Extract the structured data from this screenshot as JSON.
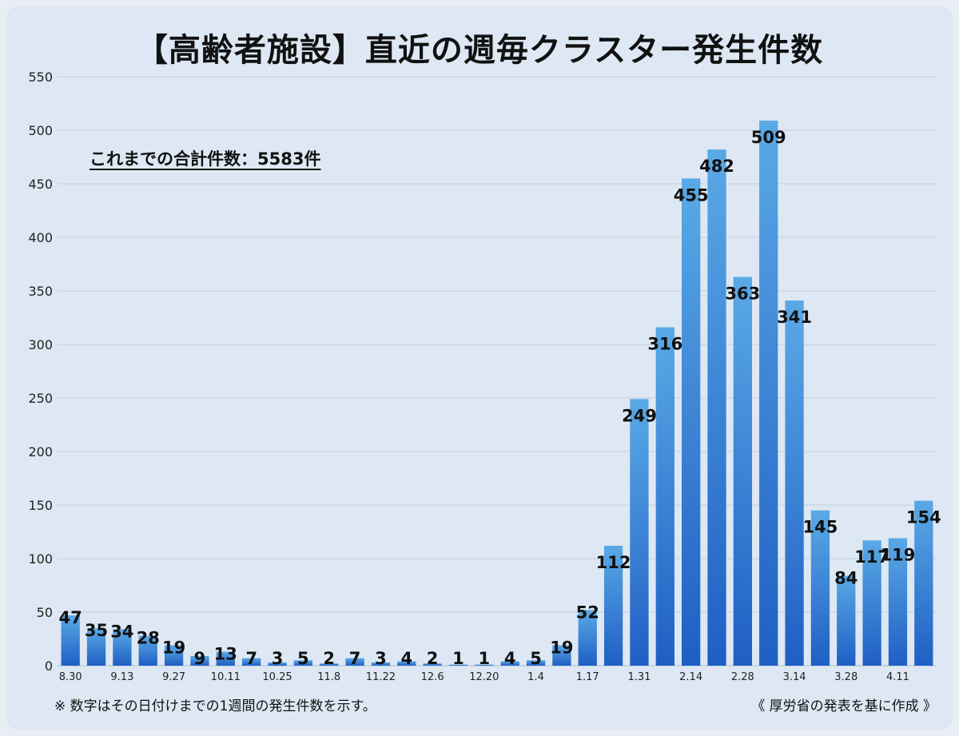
{
  "title": "【高齢者施設】直近の週毎クラスター発生件数",
  "total_note": "これまでの合計件数：5583件",
  "footnote_left": "※ 数字はその日付けまでの1週間の発生件数を示す。",
  "footnote_right": "《 厚労省の発表を基に作成 》",
  "colors": {
    "bar_top": "#5aa9e6",
    "bar_bottom": "#1f5fc4",
    "grid": "#b8c6d6",
    "panel": "#dde8f4"
  },
  "chart_data": {
    "type": "bar",
    "title": "【高齢者施設】直近の週毎クラスター発生件数",
    "xlabel": "",
    "ylabel": "",
    "ylim": [
      0,
      550
    ],
    "yticks": [
      0,
      50,
      100,
      150,
      200,
      250,
      300,
      350,
      400,
      450,
      500,
      550
    ],
    "grid": true,
    "categories": [
      "8.30",
      "",
      "9.13",
      "",
      "9.27",
      "",
      "10.11",
      "",
      "10.25",
      "",
      "11.8",
      "",
      "11.22",
      "",
      "12.6",
      "",
      "12.20",
      "",
      "1.4",
      "",
      "1.17",
      "",
      "1.31",
      "",
      "2.14",
      "",
      "2.28",
      "",
      "3.14",
      "",
      "3.28",
      "",
      "4.11",
      ""
    ],
    "values": [
      47,
      35,
      34,
      28,
      19,
      9,
      13,
      7,
      3,
      5,
      2,
      7,
      3,
      4,
      2,
      1,
      1,
      4,
      5,
      19,
      52,
      112,
      249,
      316,
      455,
      482,
      363,
      509,
      341,
      145,
      84,
      117,
      119,
      154
    ]
  }
}
